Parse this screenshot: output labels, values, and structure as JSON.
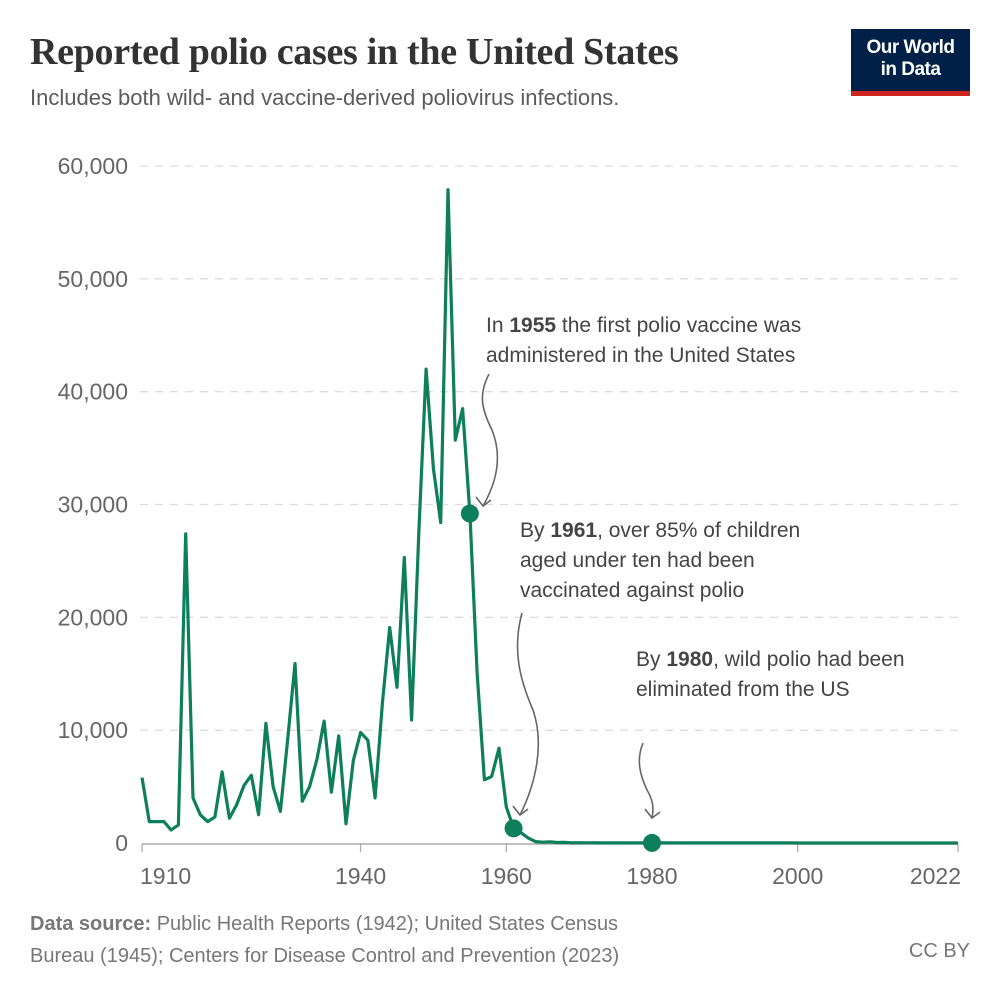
{
  "header": {
    "title": "Reported polio cases in the United States",
    "subtitle": "Includes both wild- and vaccine-derived poliovirus infections.",
    "logo": "Our World in Data",
    "logo_line1": "Our World",
    "logo_line2": "in Data"
  },
  "colors": {
    "line": "#0e7f5b",
    "logo_bg": "#002147",
    "logo_bar": "#ce261e",
    "grid": "#dddddd",
    "text": "#5b5b5b"
  },
  "chart_data": {
    "type": "line",
    "title": "Reported polio cases in the United States",
    "subtitle": "Includes both wild- and vaccine-derived poliovirus infections.",
    "xlabel": "",
    "ylabel": "",
    "xlim": [
      1910,
      2022
    ],
    "ylim": [
      0,
      60000
    ],
    "grid": true,
    "y_ticks": [
      "0",
      "10,000",
      "20,000",
      "30,000",
      "40,000",
      "50,000",
      "60,000"
    ],
    "y_tick_values": [
      0,
      10000,
      20000,
      30000,
      40000,
      50000,
      60000
    ],
    "x_ticks": [
      "1910",
      "1940",
      "1960",
      "1980",
      "2000",
      "2022"
    ],
    "x_tick_values": [
      1910,
      1940,
      1960,
      1980,
      2000,
      2022
    ],
    "x": [
      1910,
      1911,
      1912,
      1913,
      1914,
      1915,
      1916,
      1917,
      1918,
      1919,
      1920,
      1921,
      1922,
      1923,
      1924,
      1925,
      1926,
      1927,
      1928,
      1929,
      1930,
      1931,
      1932,
      1933,
      1934,
      1935,
      1936,
      1937,
      1938,
      1939,
      1940,
      1941,
      1942,
      1943,
      1944,
      1945,
      1946,
      1947,
      1948,
      1949,
      1950,
      1951,
      1952,
      1953,
      1954,
      1955,
      1956,
      1957,
      1958,
      1959,
      1960,
      1961,
      1962,
      1963,
      1964,
      1965,
      1966,
      1967,
      1968,
      1969,
      1970,
      1971,
      1972,
      1973,
      1974,
      1975,
      1976,
      1977,
      1978,
      1979,
      1980,
      1981,
      1982,
      1983,
      1984,
      1985,
      1986,
      1987,
      1988,
      1989,
      1990,
      1991,
      1992,
      1993,
      1994,
      1995,
      1996,
      1997,
      1998,
      1999,
      2000,
      2001,
      2002,
      2003,
      2004,
      2005,
      2006,
      2007,
      2008,
      2009,
      2010,
      2011,
      2012,
      2013,
      2014,
      2015,
      2016,
      2017,
      2018,
      2019,
      2020,
      2021,
      2022
    ],
    "values": [
      5800,
      1900,
      1900,
      1900,
      1150,
      1600,
      27400,
      4000,
      2500,
      1900,
      2300,
      6300,
      2200,
      3400,
      5100,
      6000,
      2500,
      10600,
      5000,
      2800,
      9200,
      15900,
      3700,
      5000,
      7400,
      10800,
      4500,
      9500,
      1700,
      7300,
      9800,
      9100,
      4000,
      12400,
      19100,
      13800,
      25300,
      10900,
      27700,
      42000,
      33200,
      28400,
      57900,
      35700,
      38500,
      29200,
      15100,
      5600,
      5900,
      8400,
      3200,
      1300,
      910,
      450,
      120,
      70,
      110,
      40,
      50,
      20,
      30,
      20,
      30,
      10,
      10,
      10,
      10,
      20,
      10,
      20,
      10,
      10,
      10,
      10,
      10,
      10,
      10,
      10,
      10,
      10,
      5,
      5,
      5,
      5,
      5,
      5,
      5,
      5,
      5,
      5,
      0,
      0,
      0,
      0,
      0,
      1,
      0,
      0,
      0,
      0,
      0,
      0,
      0,
      0,
      0,
      0,
      0,
      0,
      0,
      0,
      0,
      0,
      1
    ],
    "highlighted_points": [
      {
        "x": 1955,
        "y": 29200
      },
      {
        "x": 1961,
        "y": 1300
      },
      {
        "x": 1980,
        "y": 10
      }
    ],
    "annotations": [
      {
        "pre": "In ",
        "bold": "1955",
        "post": " the first polio vaccine was administered in the United States",
        "line1_pre": "In ",
        "line1_post": " the first polio vaccine was",
        "line2": "administered in the United States"
      },
      {
        "pre": "By ",
        "bold": "1961",
        "post": ", over 85% of children aged under ten had been vaccinated against polio",
        "line1_pre": "By ",
        "line1_post": ", over 85% of children",
        "line2": "aged under ten had been",
        "line3": "vaccinated against polio"
      },
      {
        "pre": "By ",
        "bold": "1980",
        "post": ", wild polio had been eliminated from the US",
        "line1_pre": "By ",
        "line1_post": ", wild polio had been",
        "line2": "eliminated from the US"
      }
    ]
  },
  "footer": {
    "source_label": "Data source:",
    "source_line1": " Public Health Reports (1942); United States Census",
    "source_line2": "Bureau (1945); Centers for Disease Control and Prevention (2023)",
    "license": "CC BY"
  }
}
